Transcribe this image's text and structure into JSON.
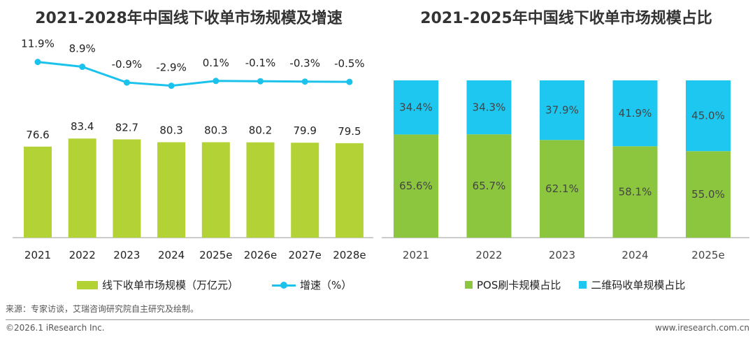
{
  "chart_data": [
    {
      "type": "bar",
      "title": "2021-2028年中国线下收单市场规模及增速",
      "categories": [
        "2021",
        "2022",
        "2023",
        "2024",
        "2025e",
        "2026e",
        "2027e",
        "2028e"
      ],
      "series": [
        {
          "name": "线下收单市场规模（万亿元）",
          "type": "bar",
          "values": [
            76.6,
            83.4,
            82.7,
            80.3,
            80.3,
            80.2,
            79.9,
            79.5
          ],
          "labels": [
            "76.6",
            "83.4",
            "82.7",
            "80.3",
            "80.3",
            "80.2",
            "79.9",
            "79.5"
          ],
          "color": "#B2D235"
        },
        {
          "name": "增速（%）",
          "type": "line",
          "values": [
            11.9,
            8.9,
            -0.9,
            -2.9,
            0.1,
            -0.1,
            -0.3,
            -0.5
          ],
          "labels": [
            "11.9%",
            "8.9%",
            "-0.9%",
            "-2.9%",
            "0.1%",
            "-0.1%",
            "-0.3%",
            "-0.5%"
          ],
          "color": "#1AC2EC"
        }
      ],
      "grid": false,
      "legend": "bottom"
    },
    {
      "type": "bar",
      "stacked": true,
      "title": "2021-2025年中国线下收单市场规模占比",
      "categories": [
        "2021",
        "2022",
        "2023",
        "2024",
        "2025e"
      ],
      "series": [
        {
          "name": "POS刷卡规模占比",
          "values": [
            65.6,
            65.7,
            62.1,
            58.1,
            55.0
          ],
          "labels": [
            "65.6%",
            "65.7%",
            "62.1%",
            "58.1%",
            "55.0%"
          ],
          "color": "#8CC63F"
        },
        {
          "name": "二维码收单规模占比",
          "values": [
            34.4,
            34.3,
            37.9,
            41.9,
            45.0
          ],
          "labels": [
            "34.4%",
            "34.3%",
            "37.9%",
            "41.9%",
            "45.0%"
          ],
          "color": "#1DC7F0"
        }
      ],
      "ylim": [
        0,
        100
      ],
      "grid": false,
      "legend": "bottom"
    }
  ],
  "footer": {
    "source": "来源：专家访谈，艾瑞咨询研究院自主研究及绘制。",
    "copyright": "©2026.1 iResearch Inc.",
    "website": "www.iresearch.com.cn"
  }
}
